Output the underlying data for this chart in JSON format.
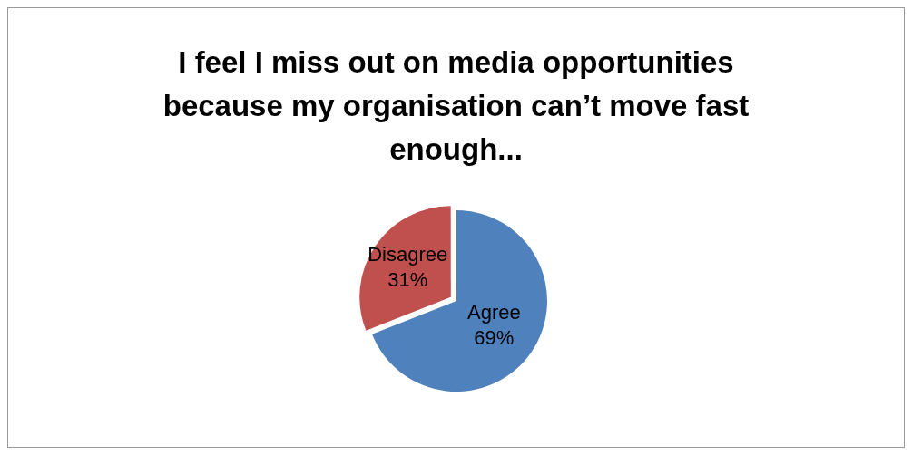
{
  "chart_data": {
    "type": "pie",
    "title": "I feel I miss out on media opportunities because my organisation can’t move fast enough...",
    "categories": [
      "Agree",
      "Disagree"
    ],
    "values": [
      69,
      31
    ],
    "colors": [
      "#4f81bd",
      "#c0504d"
    ],
    "value_labels": [
      "69%",
      "31%"
    ],
    "legend": false
  }
}
